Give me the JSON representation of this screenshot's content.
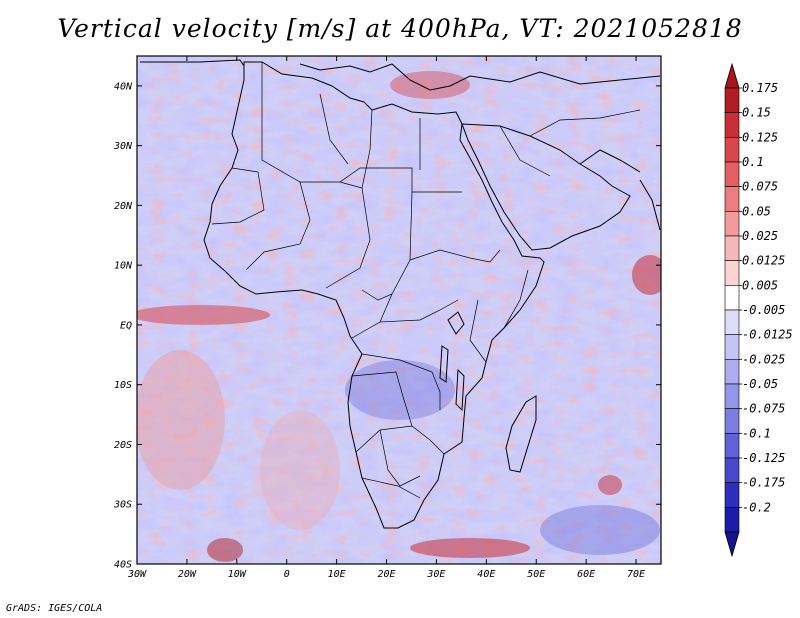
{
  "title": "Vertical velocity [m/s] at 400hPa, VT: 2021052818",
  "footer": "GrADS: IGES/COLA",
  "map": {
    "region": "Africa and surrounding oceans",
    "lon_range": [
      -30,
      75
    ],
    "lat_range": [
      -40,
      45
    ],
    "lat_labels": [
      "40N",
      "30N",
      "20N",
      "10N",
      "EQ",
      "10S",
      "20S",
      "30S",
      "40S"
    ],
    "lon_labels": [
      "30W",
      "20W",
      "10W",
      "0",
      "10E",
      "20E",
      "30E",
      "40E",
      "50E",
      "60E",
      "70E"
    ],
    "field": "vertical velocity",
    "units": "m/s",
    "level": "400hPa",
    "valid_time": "2021052818"
  },
  "colorbar": {
    "labels": [
      "0.175",
      "0.15",
      "0.125",
      "0.1",
      "0.075",
      "0.05",
      "0.025",
      "0.0125",
      "0.005",
      "-0.005",
      "-0.0125",
      "-0.025",
      "-0.05",
      "-0.075",
      "-0.1",
      "-0.125",
      "-0.175",
      "-0.2"
    ],
    "colors": [
      "#b01d22",
      "#c63036",
      "#d8474b",
      "#e35f63",
      "#ec7d80",
      "#f29a9c",
      "#f7b7b8",
      "#fbd3d4",
      "#ffffff",
      "#dcdcfb",
      "#c4c4f6",
      "#adadf0",
      "#9595ea",
      "#7d7de2",
      "#6262d8",
      "#4848cc",
      "#2e2ebd",
      "#1c1ca8"
    ],
    "top_color": "#a8161a",
    "bottom_color": "#15158f"
  }
}
